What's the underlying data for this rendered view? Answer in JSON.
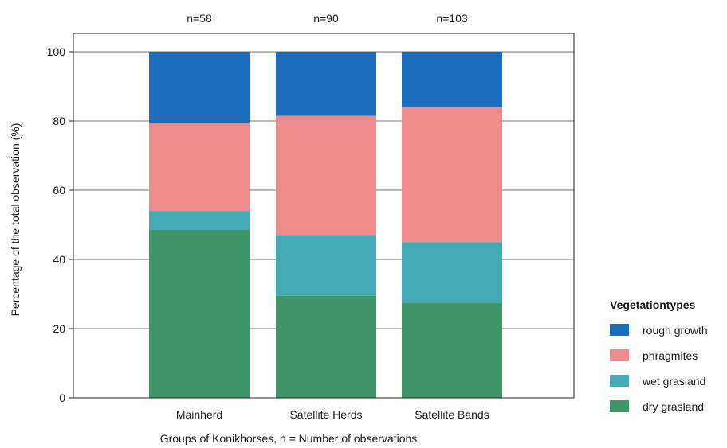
{
  "chart_data": {
    "type": "bar",
    "stacked": true,
    "categories": [
      "Mainherd",
      "Satellite Herds",
      "Satellite Bands"
    ],
    "counts": [
      "n=58",
      "n=90",
      "n=103"
    ],
    "series": [
      {
        "name": "dry grasland",
        "color": "#3f9468",
        "values": [
          48.5,
          29.5,
          27.5
        ]
      },
      {
        "name": "wet grasland",
        "color": "#46aab5",
        "values": [
          5.5,
          17.5,
          17.5
        ]
      },
      {
        "name": "phragmites",
        "color": "#ec8a8c",
        "values": [
          25.5,
          34.5,
          39.0
        ]
      },
      {
        "name": "rough growth",
        "color": "#1d6fbd",
        "values": [
          20.5,
          18.5,
          16.0
        ]
      }
    ],
    "legend_order": [
      "rough growth",
      "phragmites",
      "wet grasland",
      "dry grasland"
    ],
    "legend_title": "Vegetationtypes",
    "legend_position": "right",
    "xlabel": "Groups of Konikhorses, n = Number of observations",
    "ylabel": "Percentage of the total observation (%)",
    "ylim": [
      0,
      100
    ],
    "yticks": [
      0,
      20,
      40,
      60,
      80,
      100
    ],
    "grid": true
  }
}
